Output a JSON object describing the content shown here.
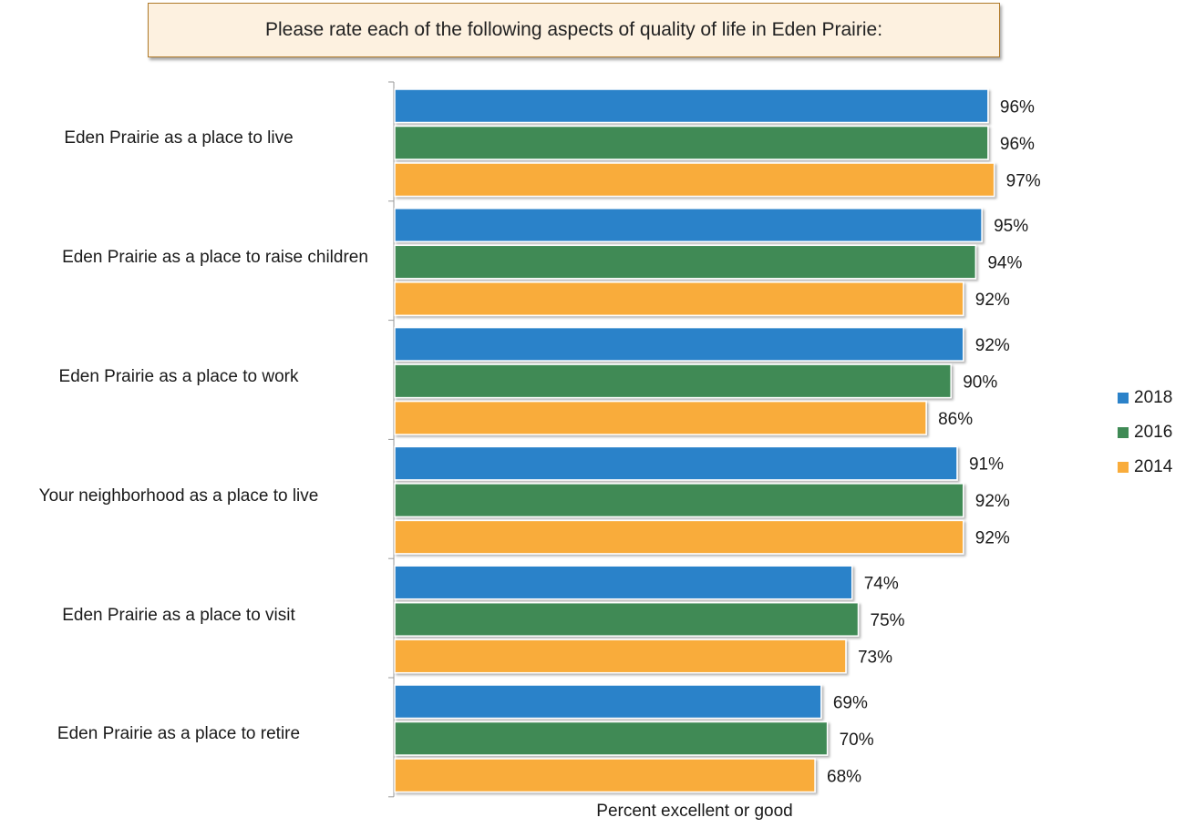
{
  "title": "Please rate each of the following aspects of quality of life in Eden Prairie:",
  "chart_data": {
    "type": "bar",
    "orientation": "horizontal",
    "title": "Please rate each of the following aspects of quality of life in Eden Prairie:",
    "xlabel": "Percent excellent or good",
    "ylabel": "",
    "xlim": [
      0,
      100
    ],
    "grid": false,
    "legend_position": "right",
    "categories": [
      "Eden Prairie as a place to live",
      "Eden Prairie as a place to raise children",
      "Eden Prairie as a place to work",
      "Your neighborhood as a place to live",
      "Eden Prairie as a place to visit",
      "Eden Prairie as a place to retire"
    ],
    "series": [
      {
        "name": "2018",
        "color": "#2b82c9",
        "values": [
          96,
          95,
          92,
          91,
          74,
          69
        ],
        "labels": [
          "96%",
          "95%",
          "92%",
          "91%",
          "74%",
          "69%"
        ]
      },
      {
        "name": "2016",
        "color": "#3f8a55",
        "values": [
          96,
          94,
          90,
          92,
          75,
          70
        ],
        "labels": [
          "96%",
          "94%",
          "90%",
          "92%",
          "75%",
          "70%"
        ]
      },
      {
        "name": "2014",
        "color": "#f9ac3b",
        "values": [
          97,
          92,
          86,
          92,
          73,
          68
        ],
        "labels": [
          "97%",
          "92%",
          "86%",
          "92%",
          "73%",
          "68%"
        ]
      }
    ]
  }
}
